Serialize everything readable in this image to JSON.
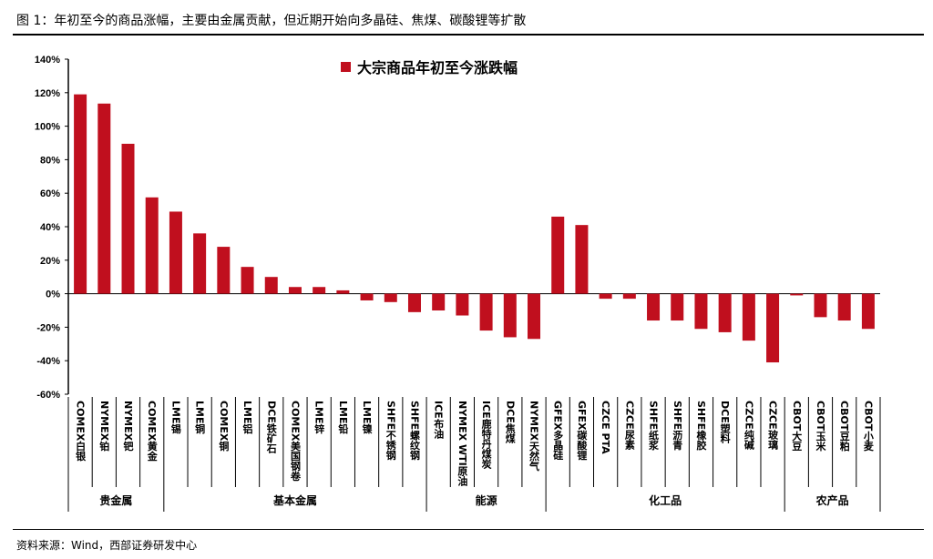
{
  "title": "图 1：年初至今的商品涨幅，主要由金属贡献，但近期开始向多晶硅、焦煤、碳酸锂等扩散",
  "source": "资料来源：Wind，西部证券研发中心",
  "chart_data": {
    "type": "bar",
    "title": "",
    "legend": {
      "label": "大宗商品年初至今涨跌幅",
      "placement": "top-center"
    },
    "color": "#C00F1E",
    "ylim": [
      -60,
      140
    ],
    "yticks": [
      140,
      120,
      100,
      80,
      60,
      40,
      20,
      0,
      -20,
      -40,
      -60
    ],
    "ytick_format": "%",
    "grid": false,
    "categories": [
      "COMEX白银",
      "NYMEX铂",
      "NYMEX钯",
      "COMEX黄金",
      "LME锡",
      "LME铜",
      "COMEX铜",
      "LME铝",
      "DCE铁矿石",
      "COMEX美国钢卷",
      "LME锌",
      "LME铅",
      "LME镍",
      "SHFE不锈钢",
      "SHFE螺纹钢",
      "ICE布油",
      "NYMEX WTI原油",
      "ICE鹿特丹煤炭",
      "DCE焦煤",
      "NYMEX天然气",
      "GFEX多晶硅",
      "GFEX碳酸锂",
      "CZCE PTA",
      "CZCE尿素",
      "SHFE纸浆",
      "SHFE沥青",
      "SHFE橡胶",
      "DCE塑料",
      "CZCE纯碱",
      "CZCE玻璃",
      "CBOT大豆",
      "CBOT玉米",
      "CBOT豆粕",
      "CBOT小麦"
    ],
    "values": [
      119,
      113.5,
      89.5,
      57.5,
      49,
      36,
      28,
      16,
      10,
      4,
      4,
      2,
      -4,
      -5,
      -11,
      -10,
      -13,
      -22,
      -26,
      -27,
      46,
      41,
      -3,
      -3,
      -16,
      -16,
      -21,
      -23,
      -28,
      -41,
      -1,
      -14,
      -16,
      -21
    ],
    "groups": [
      {
        "label": "贵金属",
        "count": 4
      },
      {
        "label": "基本金属",
        "count": 11
      },
      {
        "label": "能源",
        "count": 5
      },
      {
        "label": "化工品",
        "count": 10
      },
      {
        "label": "农产品",
        "count": 4
      }
    ]
  }
}
